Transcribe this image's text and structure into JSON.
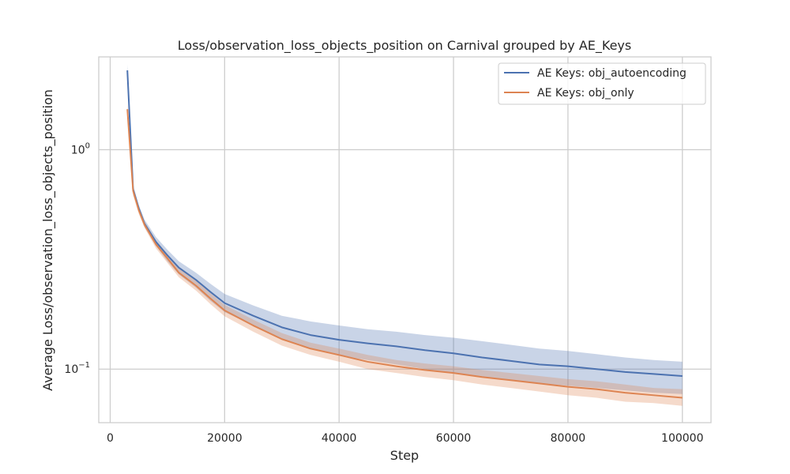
{
  "chart_data": {
    "type": "line",
    "title": "Loss/observation_loss_objects_position on Carnival grouped by AE_Keys",
    "xlabel": "Step",
    "ylabel": "Average Loss/observation_loss_objects_position",
    "xscale": "linear",
    "yscale": "log",
    "xlim": [
      -2000,
      105000
    ],
    "ylim": [
      0.057,
      2.65
    ],
    "x_ticks": [
      0,
      20000,
      40000,
      60000,
      80000,
      100000
    ],
    "x_tick_labels": [
      "0",
      "20000",
      "40000",
      "60000",
      "80000",
      "100000"
    ],
    "y_ticks": [
      1.0,
      0.1
    ],
    "y_tick_labels": [
      {
        "base": "10",
        "exp": "0"
      },
      {
        "base": "10",
        "exp": "−1"
      }
    ],
    "grid": true,
    "legend_position": "top-right",
    "x": [
      3000,
      4000,
      5000,
      6000,
      8000,
      10000,
      12000,
      15000,
      17500,
      20000,
      25000,
      30000,
      35000,
      40000,
      45000,
      50000,
      55000,
      60000,
      65000,
      70000,
      75000,
      80000,
      85000,
      90000,
      95000,
      100000
    ],
    "series": [
      {
        "name": "AE Keys: obj_autoencoding",
        "color": "#4c72b0",
        "values": [
          2.3,
          0.66,
          0.54,
          0.46,
          0.38,
          0.33,
          0.29,
          0.255,
          0.225,
          0.2,
          0.175,
          0.155,
          0.143,
          0.136,
          0.131,
          0.127,
          0.122,
          0.118,
          0.113,
          0.109,
          0.105,
          0.103,
          0.1,
          0.097,
          0.095,
          0.093
        ],
        "band_lower": [
          2.1,
          0.63,
          0.52,
          0.445,
          0.365,
          0.31,
          0.27,
          0.235,
          0.205,
          0.182,
          0.158,
          0.138,
          0.124,
          0.115,
          0.11,
          0.105,
          0.1,
          0.096,
          0.092,
          0.089,
          0.086,
          0.084,
          0.082,
          0.08,
          0.078,
          0.077
        ],
        "band_upper": [
          2.45,
          0.69,
          0.56,
          0.48,
          0.4,
          0.35,
          0.31,
          0.275,
          0.245,
          0.22,
          0.195,
          0.175,
          0.165,
          0.158,
          0.152,
          0.148,
          0.143,
          0.139,
          0.134,
          0.129,
          0.124,
          0.121,
          0.117,
          0.113,
          0.11,
          0.108
        ]
      },
      {
        "name": "AE Keys: obj_only",
        "color": "#dd8452",
        "values": [
          1.53,
          0.65,
          0.53,
          0.455,
          0.37,
          0.32,
          0.275,
          0.24,
          0.21,
          0.185,
          0.158,
          0.137,
          0.124,
          0.116,
          0.108,
          0.103,
          0.099,
          0.096,
          0.092,
          0.089,
          0.086,
          0.083,
          0.081,
          0.078,
          0.076,
          0.074
        ],
        "band_lower": [
          1.45,
          0.62,
          0.51,
          0.44,
          0.355,
          0.305,
          0.262,
          0.228,
          0.198,
          0.174,
          0.148,
          0.128,
          0.116,
          0.108,
          0.1,
          0.096,
          0.092,
          0.089,
          0.085,
          0.082,
          0.079,
          0.076,
          0.074,
          0.071,
          0.07,
          0.068
        ],
        "band_upper": [
          1.62,
          0.68,
          0.55,
          0.47,
          0.385,
          0.335,
          0.288,
          0.252,
          0.222,
          0.196,
          0.168,
          0.146,
          0.132,
          0.124,
          0.116,
          0.11,
          0.106,
          0.103,
          0.099,
          0.096,
          0.093,
          0.09,
          0.088,
          0.085,
          0.082,
          0.081
        ]
      }
    ]
  }
}
